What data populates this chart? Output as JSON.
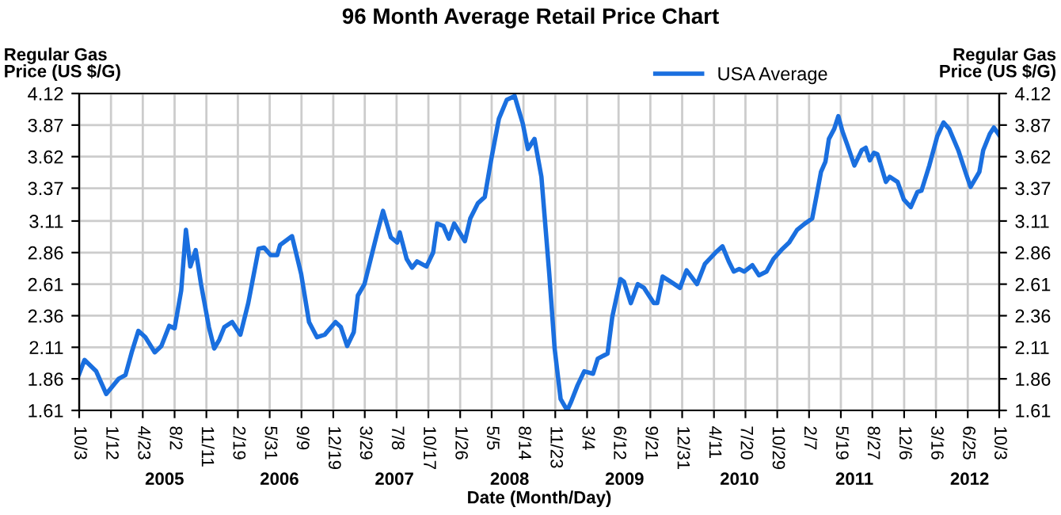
{
  "chart_data": {
    "type": "line",
    "title": "96 Month Average Retail Price Chart",
    "xlabel": "Date (Month/Day)",
    "ylabel": "Regular Gas\nPrice (US $/G)",
    "y2label": "Regular Gas\nPrice (US $/G)",
    "x": [
      "2004-10-03",
      "2004-10-20",
      "2004-11-26",
      "2004-12-28",
      "2005-02-05",
      "2005-02-27",
      "2005-03-20",
      "2005-04-09",
      "2005-05-01",
      "2005-05-31",
      "2005-06-21",
      "2005-07-16",
      "2005-08-02",
      "2005-08-23",
      "2005-09-07",
      "2005-09-21",
      "2005-10-08",
      "2005-10-25",
      "2005-11-19",
      "2005-12-06",
      "2005-12-22",
      "2006-01-07",
      "2006-02-01",
      "2006-02-27",
      "2006-03-24",
      "2006-04-26",
      "2006-05-13",
      "2006-06-03",
      "2006-06-24",
      "2006-07-03",
      "2006-08-10",
      "2006-09-08",
      "2006-10-03",
      "2006-10-28",
      "2006-11-22",
      "2006-12-26",
      "2007-01-12",
      "2007-02-01",
      "2007-02-22",
      "2007-03-07",
      "2007-03-28",
      "2007-04-22",
      "2007-05-08",
      "2007-05-26",
      "2007-06-20",
      "2007-07-10",
      "2007-07-18",
      "2007-08-09",
      "2007-08-26",
      "2007-09-11",
      "2007-10-11",
      "2007-11-01",
      "2007-11-14",
      "2007-12-04",
      "2007-12-21",
      "2008-01-07",
      "2008-02-10",
      "2008-02-27",
      "2008-03-22",
      "2008-04-13",
      "2008-05-03",
      "2008-05-28",
      "2008-06-22",
      "2008-07-17",
      "2008-08-12",
      "2008-08-28",
      "2008-09-18",
      "2008-10-10",
      "2008-11-04",
      "2008-11-21",
      "2008-12-10",
      "2008-12-31",
      "2009-01-11",
      "2009-02-02",
      "2009-02-23",
      "2009-03-23",
      "2009-04-07",
      "2009-05-08",
      "2009-05-23",
      "2009-06-18",
      "2009-06-29",
      "2009-07-21",
      "2009-08-12",
      "2009-09-01",
      "2009-10-02",
      "2009-10-13",
      "2009-10-30",
      "2009-11-24",
      "2009-12-24",
      "2010-01-14",
      "2010-02-16",
      "2010-03-13",
      "2010-04-16",
      "2010-05-08",
      "2010-05-28",
      "2010-06-13",
      "2010-06-30",
      "2010-07-16",
      "2010-08-11",
      "2010-09-01",
      "2010-09-25",
      "2010-10-17",
      "2010-11-11",
      "2010-12-06",
      "2010-12-31",
      "2011-01-25",
      "2011-02-17",
      "2011-03-02",
      "2011-03-17",
      "2011-03-31",
      "2011-04-11",
      "2011-04-28",
      "2011-05-11",
      "2011-05-24",
      "2011-06-09",
      "2011-07-01",
      "2011-07-24",
      "2011-08-06",
      "2011-08-19",
      "2011-09-01",
      "2011-09-12",
      "2011-10-09",
      "2011-10-21",
      "2011-11-15",
      "2011-12-05",
      "2011-12-27",
      "2012-01-17",
      "2012-01-30",
      "2012-02-24",
      "2012-03-20",
      "2012-04-09",
      "2012-04-27",
      "2012-05-26",
      "2012-06-20",
      "2012-07-04",
      "2012-08-01",
      "2012-08-13",
      "2012-09-03",
      "2012-09-16",
      "2012-10-03"
    ],
    "series": [
      {
        "name": "USA Average",
        "color": "#1a6fdf",
        "values": [
          1.9,
          2.01,
          1.92,
          1.74,
          1.86,
          1.89,
          2.08,
          2.24,
          2.19,
          2.07,
          2.12,
          2.28,
          2.26,
          2.56,
          3.04,
          2.75,
          2.88,
          2.61,
          2.27,
          2.1,
          2.17,
          2.27,
          2.31,
          2.21,
          2.46,
          2.89,
          2.9,
          2.84,
          2.84,
          2.92,
          2.99,
          2.69,
          2.31,
          2.19,
          2.21,
          2.31,
          2.27,
          2.12,
          2.23,
          2.52,
          2.61,
          2.86,
          3.02,
          3.19,
          2.98,
          2.94,
          3.02,
          2.81,
          2.74,
          2.79,
          2.75,
          2.86,
          3.09,
          3.07,
          2.97,
          3.09,
          2.95,
          3.13,
          3.25,
          3.3,
          3.59,
          3.92,
          4.07,
          4.1,
          3.88,
          3.68,
          3.76,
          3.46,
          2.69,
          2.1,
          1.7,
          1.61,
          1.67,
          1.81,
          1.92,
          1.9,
          2.02,
          2.06,
          2.35,
          2.65,
          2.63,
          2.46,
          2.61,
          2.58,
          2.46,
          2.46,
          2.67,
          2.63,
          2.58,
          2.72,
          2.61,
          2.77,
          2.86,
          2.91,
          2.79,
          2.71,
          2.73,
          2.71,
          2.76,
          2.68,
          2.71,
          2.81,
          2.88,
          2.94,
          3.04,
          3.09,
          3.13,
          3.3,
          3.5,
          3.58,
          3.76,
          3.84,
          3.94,
          3.82,
          3.71,
          3.55,
          3.67,
          3.69,
          3.59,
          3.65,
          3.64,
          3.42,
          3.46,
          3.42,
          3.28,
          3.22,
          3.34,
          3.35,
          3.55,
          3.78,
          3.89,
          3.84,
          3.67,
          3.48,
          3.38,
          3.5,
          3.67,
          3.8,
          3.85,
          3.79
        ]
      }
    ],
    "xlim": [
      "2004-10-03",
      "2012-10-03"
    ],
    "xticks": [
      {
        "value": "2004-10-03",
        "label": "10/3"
      },
      {
        "value": "2005-01-12",
        "label": "1/12"
      },
      {
        "value": "2005-04-23",
        "label": "4/23"
      },
      {
        "value": "2005-08-02",
        "label": "8/2"
      },
      {
        "value": "2005-11-11",
        "label": "11/11"
      },
      {
        "value": "2006-02-19",
        "label": "2/19"
      },
      {
        "value": "2006-05-31",
        "label": "5/31"
      },
      {
        "value": "2006-09-09",
        "label": "9/9"
      },
      {
        "value": "2006-12-19",
        "label": "12/19"
      },
      {
        "value": "2007-03-29",
        "label": "3/29"
      },
      {
        "value": "2007-07-08",
        "label": "7/8"
      },
      {
        "value": "2007-10-17",
        "label": "10/17"
      },
      {
        "value": "2008-01-26",
        "label": "1/26"
      },
      {
        "value": "2008-05-05",
        "label": "5/5"
      },
      {
        "value": "2008-08-14",
        "label": "8/14"
      },
      {
        "value": "2008-11-23",
        "label": "11/23"
      },
      {
        "value": "2009-03-04",
        "label": "3/4"
      },
      {
        "value": "2009-06-12",
        "label": "6/12"
      },
      {
        "value": "2009-09-21",
        "label": "9/21"
      },
      {
        "value": "2009-12-31",
        "label": "12/31"
      },
      {
        "value": "2010-04-11",
        "label": "4/11"
      },
      {
        "value": "2010-07-20",
        "label": "7/20"
      },
      {
        "value": "2010-10-29",
        "label": "10/29"
      },
      {
        "value": "2011-02-07",
        "label": "2/7"
      },
      {
        "value": "2011-05-19",
        "label": "5/19"
      },
      {
        "value": "2011-08-27",
        "label": "8/27"
      },
      {
        "value": "2011-12-06",
        "label": "12/6"
      },
      {
        "value": "2012-03-16",
        "label": "3/16"
      },
      {
        "value": "2012-06-25",
        "label": "6/25"
      },
      {
        "value": "2012-10-03",
        "label": "10/3"
      }
    ],
    "x2lim": [
      "2004-10-03",
      "2012-10-03"
    ],
    "x2ticks": [
      {
        "value": "2005-07-01",
        "label": "2005"
      },
      {
        "value": "2006-07-01",
        "label": "2006"
      },
      {
        "value": "2007-07-01",
        "label": "2007"
      },
      {
        "value": "2008-07-01",
        "label": "2008"
      },
      {
        "value": "2009-07-01",
        "label": "2009"
      },
      {
        "value": "2010-07-01",
        "label": "2010"
      },
      {
        "value": "2011-07-01",
        "label": "2011"
      },
      {
        "value": "2012-07-01",
        "label": "2012"
      }
    ],
    "ylim": [
      1.61,
      4.12
    ],
    "yticks": [
      1.61,
      1.86,
      2.11,
      2.36,
      2.61,
      2.86,
      3.11,
      3.37,
      3.62,
      3.87,
      4.12
    ],
    "y2lim": [
      1.61,
      4.12
    ],
    "y2ticks": [
      1.61,
      1.86,
      2.11,
      2.36,
      2.61,
      2.86,
      3.11,
      3.37,
      3.62,
      3.87,
      4.12
    ],
    "grid": true,
    "legend": "top",
    "line_style": "solid"
  }
}
